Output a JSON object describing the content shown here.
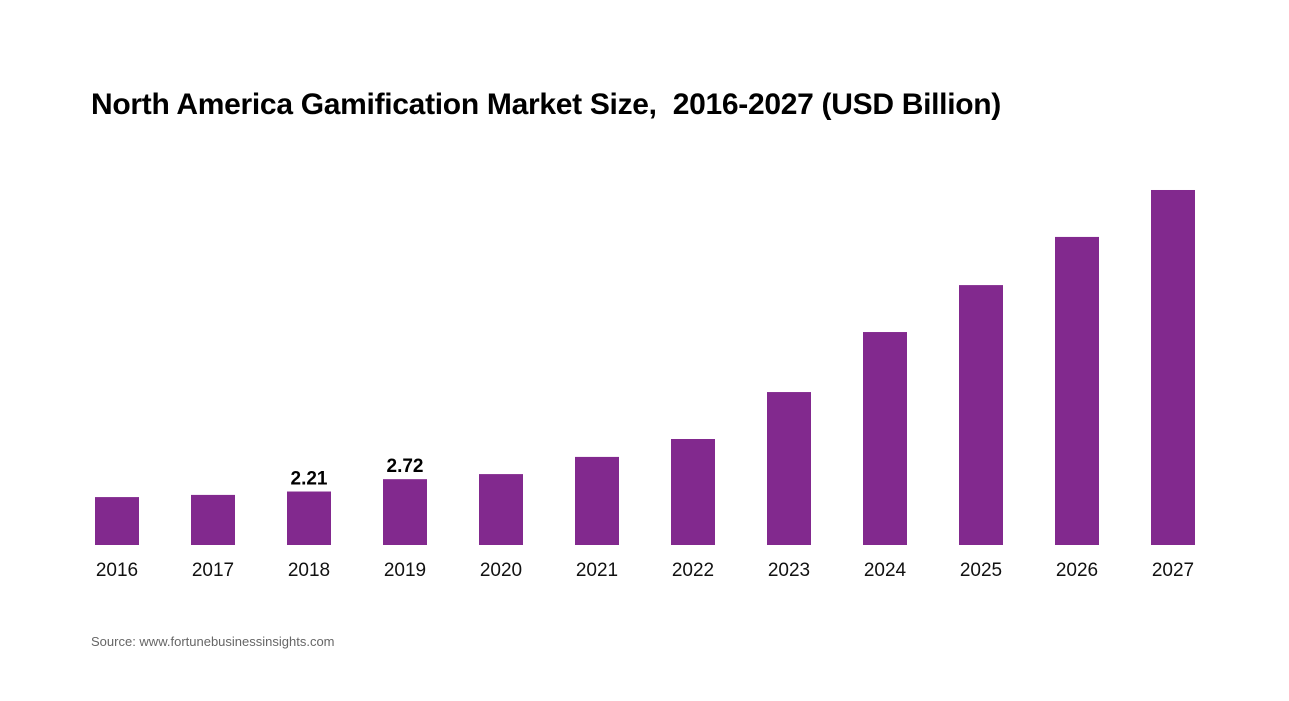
{
  "chart_data": {
    "type": "bar",
    "title": "North America Gamification Market Size,  2016-2027 (USD Billion)",
    "categories": [
      "2016",
      "2017",
      "2018",
      "2019",
      "2020",
      "2021",
      "2022",
      "2023",
      "2024",
      "2025",
      "2026",
      "2027"
    ],
    "values": [
      1.98,
      2.07,
      2.21,
      2.72,
      2.93,
      3.64,
      4.38,
      6.32,
      8.8,
      10.74,
      12.73,
      14.67
    ],
    "data_labels": {
      "2018": "2.21",
      "2019": "2.72"
    },
    "xlabel": "",
    "ylabel": "",
    "ylim": [
      0,
      15
    ],
    "grid": false,
    "bar_color": "#82298E"
  },
  "source": "Source: www.fortunebusinessinsights.com"
}
